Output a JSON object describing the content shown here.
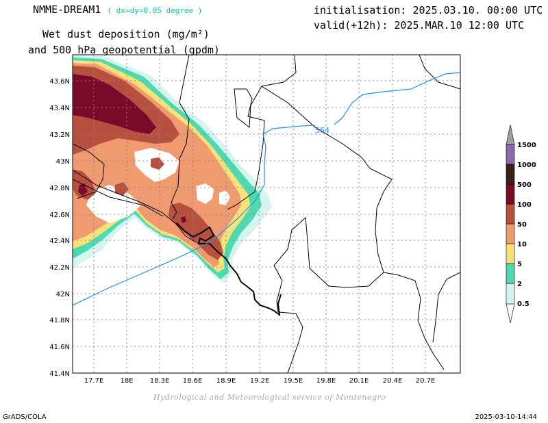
{
  "header": {
    "model": "NMME-DREAM1",
    "resolution": "( dx=dy=0.05 degree )",
    "initialisation": "initialisation: 2025.03.10. 00:00 UTC",
    "valid": "valid(+12h): 2025.MAR.10 12:00 UTC",
    "title_line1": "Wet dust deposition (mg/m²)",
    "title_line2": "and 500 hPa geopotential (gpdm)"
  },
  "map": {
    "lat_labels": [
      "43.6N",
      "43.4N",
      "43.2N",
      "43N",
      "42.8N",
      "42.6N",
      "42.4N",
      "42.2N",
      "42N",
      "41.8N",
      "41.6N",
      "41.4N"
    ],
    "lon_labels": [
      "17.7E",
      "18E",
      "18.3E",
      "18.6E",
      "18.9E",
      "19.2E",
      "19.5E",
      "19.8E",
      "20.1E",
      "20.4E",
      "20.7E"
    ],
    "contour_label": "564",
    "contour_color": "#1e90e6"
  },
  "legend": {
    "levels": [
      "0.5",
      "2",
      "5",
      "10",
      "50",
      "100",
      "500",
      "1000",
      "1500"
    ],
    "colors": [
      "#d4f4f0",
      "#4ed9b0",
      "#f7e27a",
      "#f09a70",
      "#b85040",
      "#7a0a2a",
      "#3a2018",
      "#8a6aa8",
      "#a0a0a0"
    ]
  },
  "credit": "Hydrological and Meteorological service of Montenegro",
  "footer": {
    "left": "GrADS/COLA",
    "right": "2025-03-10-14:44"
  }
}
